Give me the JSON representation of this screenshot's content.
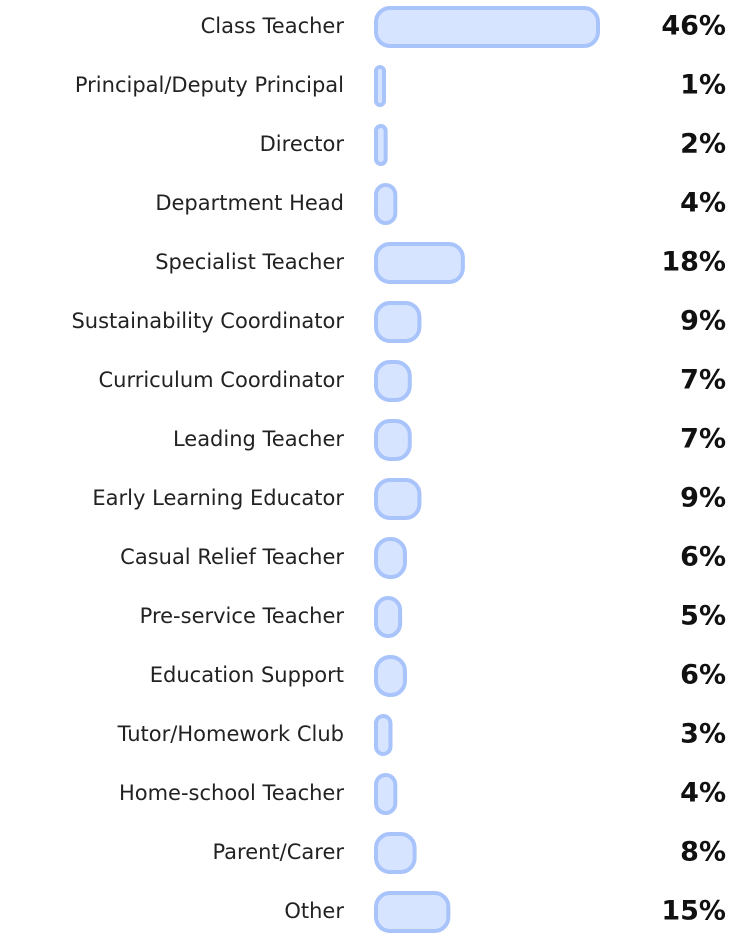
{
  "chart_data": {
    "type": "bar",
    "orientation": "horizontal",
    "categories": [
      "Class Teacher",
      "Principal/Deputy Principal",
      "Director",
      "Department Head",
      "Specialist Teacher",
      "Sustainability Coordinator",
      "Curriculum Coordinator",
      "Leading Teacher",
      "Early Learning Educator",
      "Casual Relief Teacher",
      "Pre-service Teacher",
      "Education Support",
      "Tutor/Homework Club",
      "Home-school Teacher",
      "Parent/Carer",
      "Other"
    ],
    "values": [
      46,
      1,
      2,
      4,
      18,
      9,
      7,
      7,
      9,
      6,
      5,
      6,
      3,
      4,
      8,
      15
    ],
    "value_labels": [
      "46%",
      "1%",
      "2%",
      "4%",
      "18%",
      "9%",
      "7%",
      "7%",
      "9%",
      "6%",
      "5%",
      "6%",
      "3%",
      "4%",
      "8%",
      "15%"
    ],
    "color": "#d6e4ff",
    "edge_color": "#a9c4fb"
  }
}
